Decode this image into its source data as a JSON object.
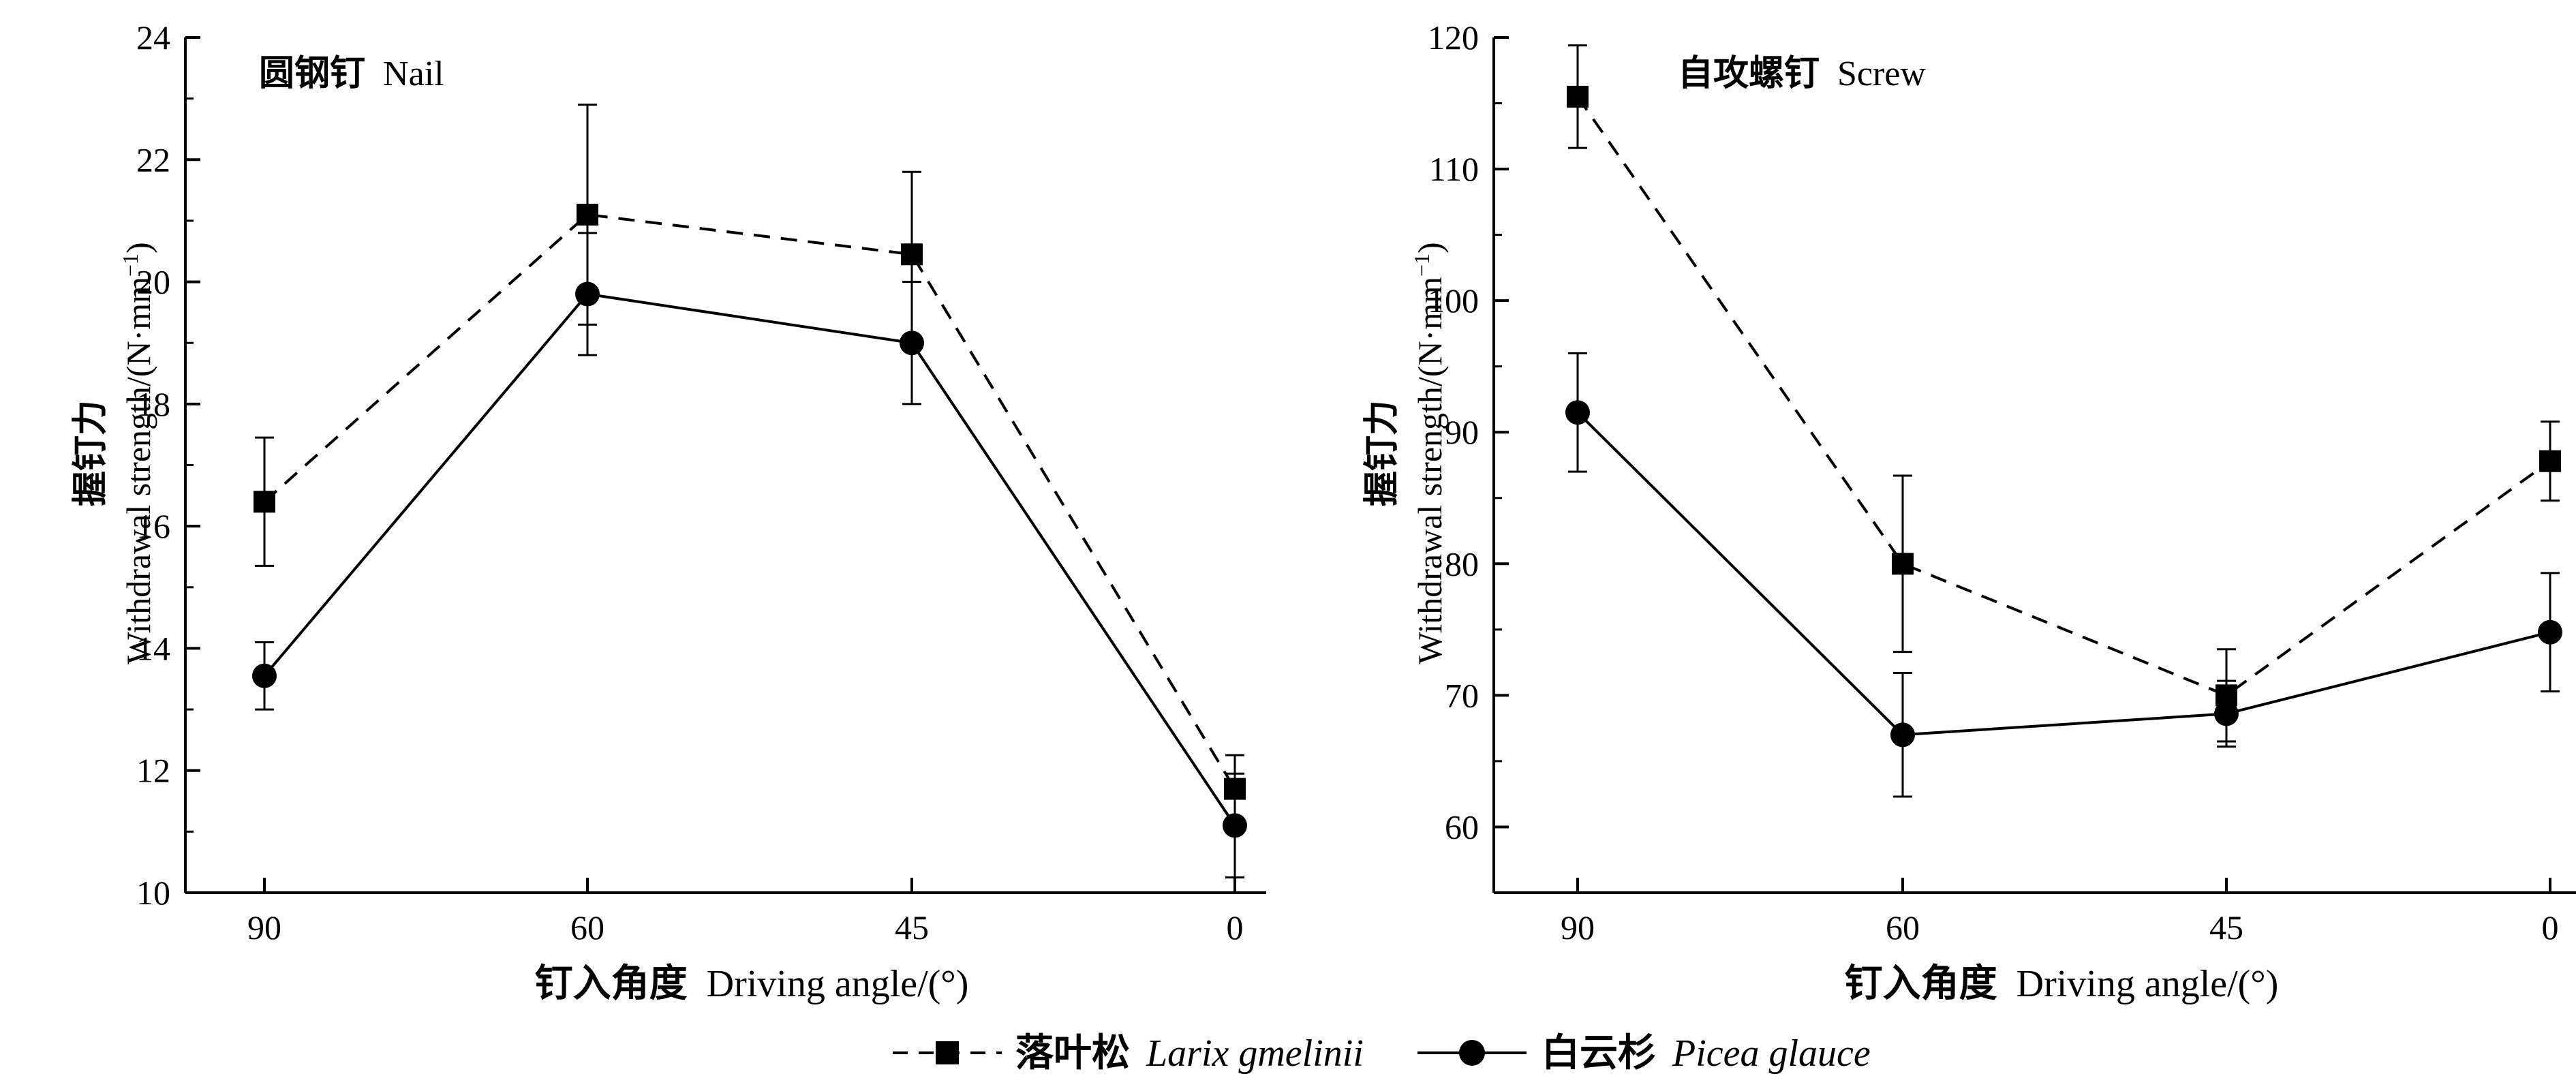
{
  "legend": {
    "placement": "bottom-center",
    "items": [
      {
        "series_id": "larix",
        "label_zh": "落叶松",
        "label_latin": "Larix gmelinii",
        "line": "dashed",
        "marker": "square"
      },
      {
        "series_id": "picea",
        "label_zh": "白云杉",
        "label_latin": "Picea glauce",
        "line": "solid",
        "marker": "circle"
      }
    ]
  },
  "chart_data": [
    {
      "type": "line",
      "panel_id": "nail",
      "title_zh": "圆钢钉",
      "title": "Nail",
      "xlabel_zh": "钉入角度",
      "xlabel": "Driving angle/(°)",
      "ylabel_zh": "握钉力",
      "ylabel": "Withdrawal strength/(N·mm",
      "ylabel_sup": "−1",
      "ylabel_end": ")",
      "categories": [
        "90",
        "60",
        "45",
        "0"
      ],
      "ylim": [
        10,
        24
      ],
      "yticks": [
        "10",
        "12",
        "14",
        "16",
        "18",
        "20",
        "22",
        "24"
      ],
      "grid": false,
      "series": [
        {
          "id": "larix",
          "name": "落叶松 Larix gmelinii",
          "line": "dashed",
          "marker": "square",
          "values": [
            16.4,
            21.1,
            20.45,
            11.7
          ],
          "errors": [
            1.05,
            1.8,
            1.35,
            0.55
          ]
        },
        {
          "id": "picea",
          "name": "白云杉 Picea glauce",
          "line": "solid",
          "marker": "circle",
          "values": [
            13.55,
            19.8,
            19.0,
            11.1
          ],
          "errors": [
            0.55,
            1.0,
            1.0,
            0.85
          ]
        }
      ]
    },
    {
      "type": "line",
      "panel_id": "screw",
      "title_zh": "自攻螺钉",
      "title": "Screw",
      "xlabel_zh": "钉入角度",
      "xlabel": "Driving angle/(°)",
      "ylabel_zh": "握钉力",
      "ylabel": "Withdrawal strength/(N·mm",
      "ylabel_sup": "−1",
      "ylabel_end": ")",
      "categories": [
        "90",
        "60",
        "45",
        "0"
      ],
      "ylim": [
        55,
        120
      ],
      "yticks": [
        "60",
        "70",
        "80",
        "90",
        "100",
        "110",
        "120"
      ],
      "grid": false,
      "series": [
        {
          "id": "larix",
          "name": "落叶松 Larix gmelinii",
          "line": "dashed",
          "marker": "square",
          "values": [
            115.5,
            80.0,
            70.0,
            87.8
          ],
          "errors": [
            3.9,
            6.7,
            3.5,
            3.0
          ]
        },
        {
          "id": "picea",
          "name": "白云杉 Picea glauce",
          "line": "solid",
          "marker": "circle",
          "values": [
            91.5,
            67.0,
            68.6,
            74.8
          ],
          "errors": [
            4.5,
            4.7,
            2.5,
            4.5
          ]
        }
      ]
    }
  ]
}
